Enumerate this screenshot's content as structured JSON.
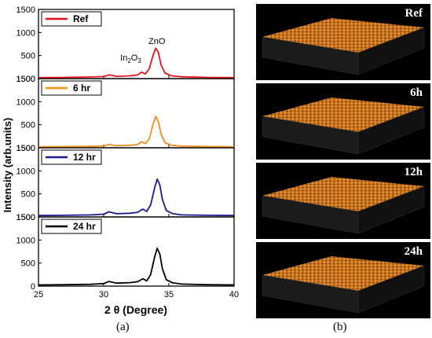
{
  "chart_data": {
    "type": "line",
    "xlabel": "2 θ (Degree)",
    "ylabel": "Intensity (arb.units)",
    "xlim": [
      25,
      40
    ],
    "ylim": [
      0,
      1500
    ],
    "x_ticks": [
      "25",
      "30",
      "35",
      "40"
    ],
    "y_ticks": [
      "500",
      "1000",
      "1500"
    ],
    "panels": [
      {
        "legend": "Ref",
        "color": "#e8141c",
        "bottom_tick": "1500",
        "annotations": [
          {
            "text": "In",
            "sub": "2",
            "text2": "O",
            "sub2": "3",
            "x": 33.0
          },
          {
            "text": "ZnO",
            "x": 34.2
          }
        ],
        "x": [
          25,
          27,
          29,
          30,
          30.4,
          31,
          32,
          32.6,
          32.9,
          33.2,
          33.5,
          33.8,
          34.0,
          34.2,
          34.4,
          34.7,
          35.2,
          36,
          38,
          40
        ],
        "y": [
          20,
          25,
          35,
          45,
          80,
          50,
          60,
          80,
          140,
          100,
          220,
          520,
          660,
          560,
          300,
          120,
          60,
          40,
          25,
          20
        ]
      },
      {
        "legend": "6 hr",
        "color": "#f28c1e",
        "bottom_tick": "1500",
        "x": [
          25,
          27,
          29,
          30,
          30.4,
          31,
          32,
          32.6,
          32.9,
          33.2,
          33.5,
          33.8,
          34.0,
          34.2,
          34.4,
          34.7,
          35.2,
          36,
          38,
          40
        ],
        "y": [
          20,
          25,
          30,
          40,
          70,
          45,
          55,
          70,
          130,
          90,
          200,
          520,
          680,
          560,
          300,
          110,
          55,
          35,
          25,
          20
        ]
      },
      {
        "legend": "12 hr",
        "color": "#1a1a8c",
        "bottom_tick": "1500",
        "x": [
          25,
          27,
          29,
          30,
          30.4,
          31,
          32,
          32.6,
          33.0,
          33.3,
          33.6,
          33.9,
          34.1,
          34.3,
          34.5,
          34.8,
          35.3,
          36,
          38,
          40
        ],
        "y": [
          30,
          35,
          45,
          60,
          110,
          70,
          80,
          100,
          170,
          120,
          260,
          620,
          820,
          700,
          380,
          140,
          70,
          45,
          35,
          30
        ]
      },
      {
        "legend": "24 hr",
        "color": "#000000",
        "bottom_tick": "0",
        "x": [
          25,
          27,
          29,
          30,
          30.4,
          31,
          32,
          32.6,
          33.0,
          33.3,
          33.6,
          33.9,
          34.1,
          34.3,
          34.5,
          34.8,
          35.3,
          36,
          38,
          40
        ],
        "y": [
          25,
          30,
          40,
          55,
          100,
          65,
          75,
          95,
          160,
          115,
          250,
          620,
          820,
          700,
          380,
          140,
          70,
          45,
          30,
          25
        ]
      }
    ]
  },
  "afm_images": [
    {
      "label": "Ref"
    },
    {
      "label": "6h"
    },
    {
      "label": "12h"
    },
    {
      "label": "24h"
    }
  ],
  "captions": {
    "a": "(a)",
    "b": "(b)"
  },
  "colors": {
    "afm_surface": "#c06a18",
    "afm_side": "#1b1b1b",
    "afm_background": "#000000"
  }
}
